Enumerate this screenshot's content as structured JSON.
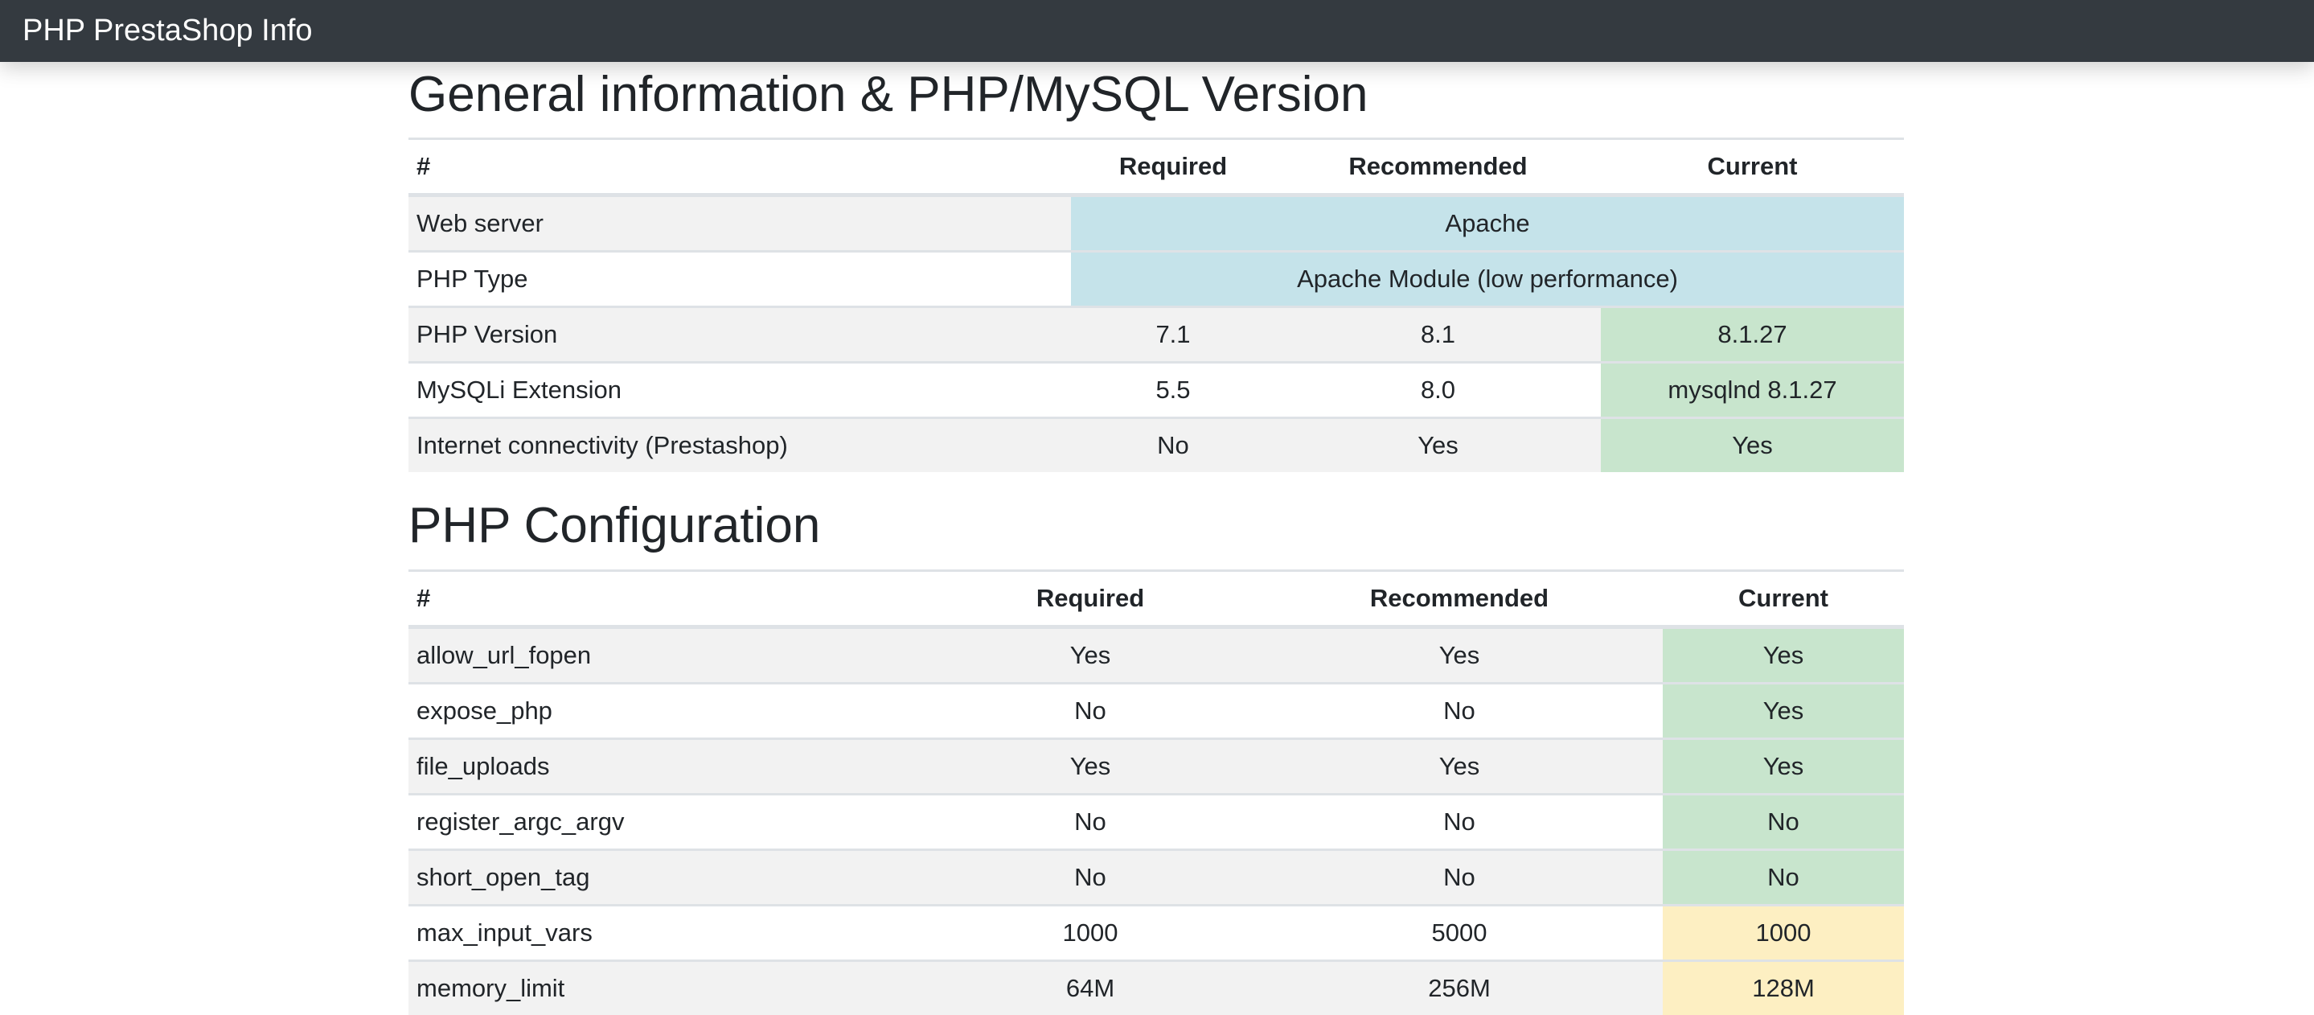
{
  "navbar": {
    "title": "PHP PrestaShop Info"
  },
  "colors": {
    "info": "#c5e3ea",
    "success": "#c8e5cd",
    "warning": "#fdefc2",
    "navbar": "#343a40"
  },
  "general": {
    "title": "General information & PHP/MySQL Version",
    "headers": [
      "#",
      "Required",
      "Recommended",
      "Current"
    ],
    "merged_rows": [
      {
        "name": "Web server",
        "value": "Apache",
        "status": "info"
      },
      {
        "name": "PHP Type",
        "value": "Apache Module (low performance)",
        "status": "info"
      }
    ],
    "rows": [
      {
        "name": "PHP Version",
        "required": "7.1",
        "recommended": "8.1",
        "current": "8.1.27",
        "status": "success"
      },
      {
        "name": "MySQLi Extension",
        "required": "5.5",
        "recommended": "8.0",
        "current": "mysqlnd 8.1.27",
        "status": "success"
      },
      {
        "name": "Internet connectivity (Prestashop)",
        "required": "No",
        "recommended": "Yes",
        "current": "Yes",
        "status": "success"
      }
    ]
  },
  "php_config": {
    "title": "PHP Configuration",
    "headers": [
      "#",
      "Required",
      "Recommended",
      "Current"
    ],
    "rows": [
      {
        "name": "allow_url_fopen",
        "required": "Yes",
        "recommended": "Yes",
        "current": "Yes",
        "status": "success"
      },
      {
        "name": "expose_php",
        "required": "No",
        "recommended": "No",
        "current": "Yes",
        "status": "success"
      },
      {
        "name": "file_uploads",
        "required": "Yes",
        "recommended": "Yes",
        "current": "Yes",
        "status": "success"
      },
      {
        "name": "register_argc_argv",
        "required": "No",
        "recommended": "No",
        "current": "No",
        "status": "success"
      },
      {
        "name": "short_open_tag",
        "required": "No",
        "recommended": "No",
        "current": "No",
        "status": "success"
      },
      {
        "name": "max_input_vars",
        "required": "1000",
        "recommended": "5000",
        "current": "1000",
        "status": "warning"
      },
      {
        "name": "memory_limit",
        "required": "64M",
        "recommended": "256M",
        "current": "128M",
        "status": "warning"
      }
    ]
  }
}
